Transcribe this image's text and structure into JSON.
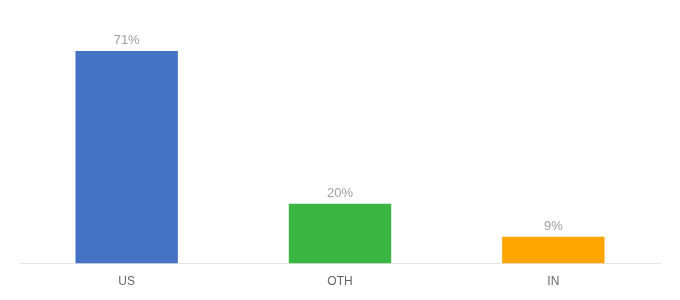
{
  "chart_data": {
    "type": "bar",
    "categories": [
      "US",
      "OTH",
      "IN"
    ],
    "values": [
      71,
      20,
      9
    ],
    "value_labels": [
      "71%",
      "20%",
      "9%"
    ],
    "colors": [
      "#4472C4",
      "#3CB643",
      "#FFA500"
    ],
    "ylim": [
      0,
      80
    ],
    "data_labels": true,
    "tick_labels": "x",
    "grid": false
  }
}
